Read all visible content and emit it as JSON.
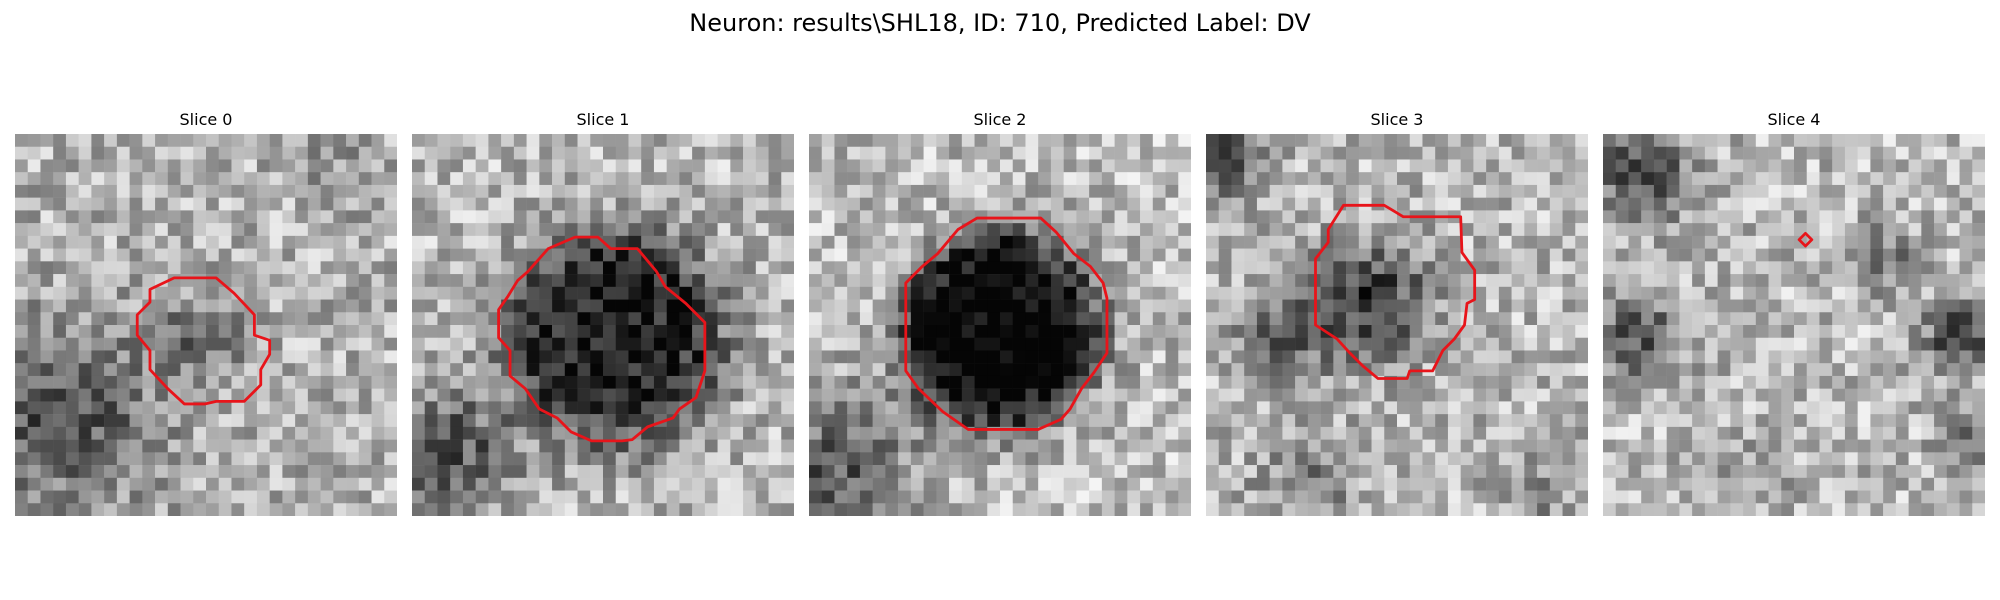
{
  "figure": {
    "title": "Neuron: results\\SHL18, ID: 710, Predicted Label: DV"
  },
  "panels": [
    {
      "title": "Slice 0"
    },
    {
      "title": "Slice 1"
    },
    {
      "title": "Slice 2"
    },
    {
      "title": "Slice 3"
    },
    {
      "title": "Slice 4"
    }
  ],
  "colors": {
    "contour": "#e8141a",
    "colormap": "gray"
  }
}
